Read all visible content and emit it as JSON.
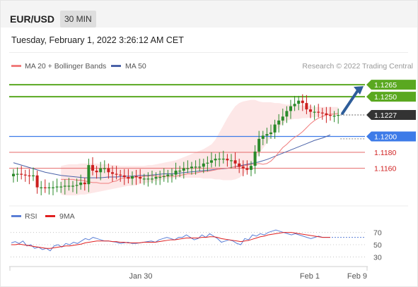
{
  "header": {
    "title": "EUR/USD",
    "timeframe": "30 MIN",
    "datetime": "Tuesday, February 1, 2022 3:26:12 AM CET"
  },
  "colors": {
    "bullish": "#2a8a2a",
    "bearish": "#cc1f1f",
    "resistance": "#5aa820",
    "support_blue": "#3d7be8",
    "support_red": "#e46a6a",
    "current": "#333333",
    "ma20": "#f07c7c",
    "ma50": "#4a62a8",
    "bands_fill": "#fde3e3",
    "rsi": "#5b7fd6",
    "rsi_ma": "#e02020",
    "arrow": "#2e5d9a"
  },
  "chart_data": [
    {
      "type": "candlestick",
      "legend": [
        "MA 20 + Bollinger Bands",
        "MA 50"
      ],
      "legend_placement": "top-left",
      "attribution": "Research © 2022 Trading Central",
      "ylim": [
        1.1118,
        1.1282
      ],
      "x_ticks": [
        "Jan 30",
        "Feb 1",
        "Feb 9"
      ],
      "levels": [
        {
          "value": 1.1265,
          "label": "1.1265",
          "kind": "resistance"
        },
        {
          "value": 1.125,
          "label": "1.1250",
          "kind": "resistance"
        },
        {
          "value": 1.1227,
          "label": "1.1227",
          "kind": "current"
        },
        {
          "value": 1.12,
          "label": "1.1200",
          "kind": "support_blue"
        },
        {
          "value": 1.118,
          "label": "1.1180",
          "kind": "support_red"
        },
        {
          "value": 1.116,
          "label": "1.1160",
          "kind": "support_red"
        }
      ],
      "close": [
        1.1153,
        1.1153,
        1.1152,
        1.1151,
        1.115,
        1.1151,
        1.1136,
        1.1136,
        1.1135,
        1.1136,
        1.1136,
        1.1137,
        1.1137,
        1.1138,
        1.1138,
        1.1138,
        1.1139,
        1.1142,
        1.114,
        1.1164,
        1.1157,
        1.1155,
        1.116,
        1.116,
        1.1155,
        1.1153,
        1.1152,
        1.1151,
        1.1149,
        1.1147,
        1.115,
        1.1149,
        1.1147,
        1.1147,
        1.1147,
        1.1147,
        1.1149,
        1.1149,
        1.115,
        1.1152,
        1.1152,
        1.1157,
        1.1157,
        1.116,
        1.116,
        1.1162,
        1.1162,
        1.1162,
        1.1166,
        1.1167,
        1.117,
        1.1172,
        1.1172,
        1.1172,
        1.117,
        1.117,
        1.1166,
        1.1162,
        1.116,
        1.1158,
        1.1163,
        1.1181,
        1.1197,
        1.1201,
        1.1203,
        1.1205,
        1.1215,
        1.122,
        1.1225,
        1.1232,
        1.1238,
        1.1241,
        1.1245,
        1.1242,
        1.1234,
        1.1231,
        1.1231,
        1.123,
        1.1229,
        1.1227,
        1.1226,
        1.1226,
        1.1227
      ],
      "ma20": [
        1.1146,
        1.1146,
        1.1146,
        1.1146,
        1.1145,
        1.1145,
        1.1144,
        1.1143,
        1.1142,
        1.1142,
        1.1141,
        1.1141,
        1.1141,
        1.1143,
        1.1144,
        1.1147,
        1.1148,
        1.1148,
        1.1148,
        1.1149,
        1.1149,
        1.115,
        1.115,
        1.1151,
        1.115,
        1.115,
        1.115,
        1.115,
        1.115,
        1.115,
        1.1151,
        1.1152,
        1.1153,
        1.1153,
        1.1154,
        1.1155,
        1.1156,
        1.1156,
        1.1157,
        1.1158,
        1.1159,
        1.116,
        1.116,
        1.1161,
        1.1162,
        1.1162,
        1.1163,
        1.1164,
        1.1165,
        1.1165,
        1.1166,
        1.1165,
        1.1166,
        1.1169,
        1.1174,
        1.118,
        1.1186,
        1.119,
        1.1195,
        1.1199,
        1.1202,
        1.1206,
        1.1211,
        1.1216,
        1.122,
        1.1223,
        1.1225,
        1.1227,
        1.1228,
        1.1228,
        1.1229
      ],
      "ma20_start": 12,
      "ma50": [
        1.1167,
        1.1164,
        1.1161,
        1.1158,
        1.1155,
        1.1153,
        1.1151,
        1.115,
        1.1149,
        1.1148,
        1.1148,
        1.1148,
        1.1149,
        1.1149,
        1.115,
        1.115,
        1.1151,
        1.1151,
        1.1152,
        1.1153,
        1.1153,
        1.1154,
        1.1155,
        1.1156,
        1.1157,
        1.1158,
        1.1159,
        1.116,
        1.1162,
        1.1164,
        1.1166,
        1.1168,
        1.1171,
        1.1175,
        1.1179,
        1.1183,
        1.1187,
        1.1191,
        1.1195,
        1.1198,
        1.1202
      ],
      "ma50_start": 0,
      "ma50_step": 2,
      "bb_upper_start": 12,
      "bb_upper": [
        1.1163,
        1.1164,
        1.1165,
        1.1165,
        1.1165,
        1.1166,
        1.1166,
        1.1166,
        1.1166,
        1.1166,
        1.1165,
        1.1165,
        1.1165,
        1.1164,
        1.1164,
        1.1163,
        1.1163,
        1.1163,
        1.1163,
        1.1163,
        1.1163,
        1.1163,
        1.1164,
        1.1164,
        1.1165,
        1.1166,
        1.1167,
        1.1168,
        1.1169,
        1.117,
        1.1172,
        1.1174,
        1.1176,
        1.1178,
        1.118,
        1.1182,
        1.1184,
        1.1187,
        1.119,
        1.1196,
        1.1205,
        1.1214,
        1.1223,
        1.1231,
        1.1238,
        1.1242,
        1.1244,
        1.1245,
        1.1246,
        1.1246,
        1.1244,
        1.1243,
        1.1243,
        1.1243,
        1.1242,
        1.1242,
        1.1241,
        1.124,
        1.124,
        1.124,
        1.124,
        1.1239,
        1.1238,
        1.1238,
        1.1237,
        1.1237,
        1.1237,
        1.1237,
        1.1237,
        1.1237,
        1.1237
      ],
      "bb_lower": [
        1.1127,
        1.1126,
        1.1126,
        1.1126,
        1.1126,
        1.1127,
        1.1127,
        1.1128,
        1.1129,
        1.113,
        1.1131,
        1.1132,
        1.1133,
        1.1134,
        1.1135,
        1.1136,
        1.1137,
        1.1138,
        1.1138,
        1.1139,
        1.114,
        1.1141,
        1.1142,
        1.1143,
        1.1144,
        1.1145,
        1.1146,
        1.1147,
        1.1147,
        1.1148,
        1.1148,
        1.1148,
        1.1148,
        1.1148,
        1.1148,
        1.1148,
        1.1147,
        1.1147,
        1.1147,
        1.1146,
        1.1146,
        1.1145,
        1.1145,
        1.1145,
        1.1146,
        1.1148,
        1.1152,
        1.1158,
        1.1164,
        1.1171,
        1.1178,
        1.1185,
        1.1192,
        1.1199,
        1.1205,
        1.1211,
        1.1216,
        1.122,
        1.1221,
        1.1222,
        1.1222,
        1.1223,
        1.1223,
        1.1224,
        1.1224,
        1.1225,
        1.1225,
        1.1226,
        1.1226,
        1.1226,
        1.1226
      ]
    },
    {
      "type": "line",
      "legend": [
        "RSI",
        "9MA"
      ],
      "legend_placement": "top-left",
      "ylim": [
        20,
        80
      ],
      "y_ticks": [
        70,
        50,
        30
      ],
      "rsi": [
        53,
        55,
        52,
        56,
        48,
        50,
        44,
        46,
        42,
        44,
        40,
        48,
        50,
        46,
        52,
        50,
        54,
        52,
        56,
        60,
        58,
        62,
        60,
        58,
        56,
        56,
        55,
        54,
        52,
        53,
        54,
        52,
        52,
        53,
        54,
        55,
        56,
        54,
        58,
        60,
        62,
        60,
        58,
        62,
        62,
        66,
        62,
        58,
        60,
        66,
        62,
        68,
        64,
        60,
        54,
        56,
        58,
        56,
        52,
        50,
        60,
        58,
        66,
        64,
        68,
        66,
        70,
        72,
        74,
        72,
        70,
        68,
        66,
        68,
        66,
        64,
        62,
        60,
        62,
        64,
        62,
        62,
        62
      ],
      "rsi_ma": [
        50,
        50,
        51,
        50,
        49,
        48,
        47,
        46,
        45,
        44,
        44,
        45,
        46,
        47,
        48,
        48,
        49,
        50,
        51,
        53,
        54,
        55,
        56,
        56,
        56,
        56,
        55,
        55,
        54,
        54,
        53,
        53,
        53,
        53,
        54,
        54,
        54,
        54,
        55,
        56,
        57,
        58,
        58,
        59,
        60,
        61,
        61,
        61,
        61,
        62,
        62,
        63,
        63,
        62,
        60,
        59,
        58,
        57,
        56,
        55,
        56,
        57,
        59,
        61,
        63,
        64,
        66,
        67,
        68,
        69,
        70,
        70,
        70,
        69,
        68,
        67,
        66,
        65,
        64,
        63,
        62,
        62,
        62
      ]
    }
  ]
}
